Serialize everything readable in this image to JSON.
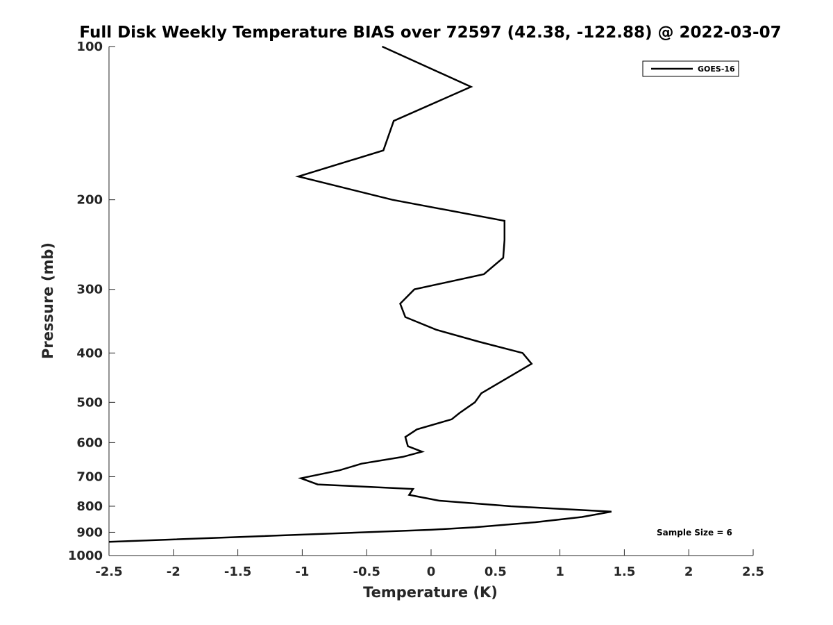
{
  "chart_data": {
    "type": "line",
    "title": "Full Disk Weekly Temperature BIAS over 72597 (42.38, -122.88) @ 2022-03-07",
    "xlabel": "Temperature (K)",
    "ylabel": "Pressure (mb)",
    "xlim": [
      -2.5,
      2.5
    ],
    "ylim": [
      100,
      1000
    ],
    "y_scale": "log",
    "y_reversed": true,
    "grid": false,
    "x_ticks": [
      -2.5,
      -2,
      -1.5,
      -1,
      -0.5,
      0,
      0.5,
      1,
      1.5,
      2,
      2.5
    ],
    "x_tick_labels": [
      "-2.5",
      "-2",
      "-1.5",
      "-1",
      "-0.5",
      "0",
      "0.5",
      "1",
      "1.5",
      "2",
      "2.5"
    ],
    "y_ticks": [
      100,
      200,
      300,
      400,
      500,
      600,
      700,
      800,
      900,
      1000
    ],
    "y_tick_labels": [
      "100",
      "200",
      "300",
      "400",
      "500",
      "600",
      "700",
      "800",
      "900",
      "1000"
    ],
    "legend": {
      "placement": "top-right",
      "entries": [
        "GOES-16"
      ]
    },
    "annotations": [
      "Sample Size = 6"
    ],
    "series": [
      {
        "name": "GOES-16",
        "color": "#000000",
        "points": [
          {
            "x": -0.38,
            "p": 100
          },
          {
            "x": 0.31,
            "p": 120
          },
          {
            "x": -0.29,
            "p": 140
          },
          {
            "x": -0.37,
            "p": 160
          },
          {
            "x": -1.03,
            "p": 180
          },
          {
            "x": -0.3,
            "p": 200
          },
          {
            "x": 0.57,
            "p": 220
          },
          {
            "x": 0.57,
            "p": 240
          },
          {
            "x": 0.56,
            "p": 260
          },
          {
            "x": 0.41,
            "p": 280
          },
          {
            "x": -0.13,
            "p": 300
          },
          {
            "x": -0.24,
            "p": 320
          },
          {
            "x": -0.2,
            "p": 340
          },
          {
            "x": 0.04,
            "p": 360
          },
          {
            "x": 0.37,
            "p": 380
          },
          {
            "x": 0.71,
            "p": 400
          },
          {
            "x": 0.78,
            "p": 420
          },
          {
            "x": 0.39,
            "p": 480
          },
          {
            "x": 0.34,
            "p": 500
          },
          {
            "x": 0.22,
            "p": 525
          },
          {
            "x": 0.16,
            "p": 540
          },
          {
            "x": -0.11,
            "p": 565
          },
          {
            "x": -0.2,
            "p": 585
          },
          {
            "x": -0.18,
            "p": 610
          },
          {
            "x": -0.07,
            "p": 625
          },
          {
            "x": -0.22,
            "p": 640
          },
          {
            "x": -0.54,
            "p": 660
          },
          {
            "x": -0.71,
            "p": 680
          },
          {
            "x": -1.01,
            "p": 705
          },
          {
            "x": -0.88,
            "p": 725
          },
          {
            "x": -0.14,
            "p": 740
          },
          {
            "x": -0.17,
            "p": 760
          },
          {
            "x": 0.06,
            "p": 780
          },
          {
            "x": 0.62,
            "p": 800
          },
          {
            "x": 1.4,
            "p": 820
          },
          {
            "x": 1.17,
            "p": 840
          },
          {
            "x": 0.81,
            "p": 860
          },
          {
            "x": 0.34,
            "p": 880
          },
          {
            "x": 0.0,
            "p": 890
          },
          {
            "x": -0.52,
            "p": 900
          },
          {
            "x": -1.52,
            "p": 920
          },
          {
            "x": -2.5,
            "p": 940
          }
        ]
      }
    ]
  }
}
